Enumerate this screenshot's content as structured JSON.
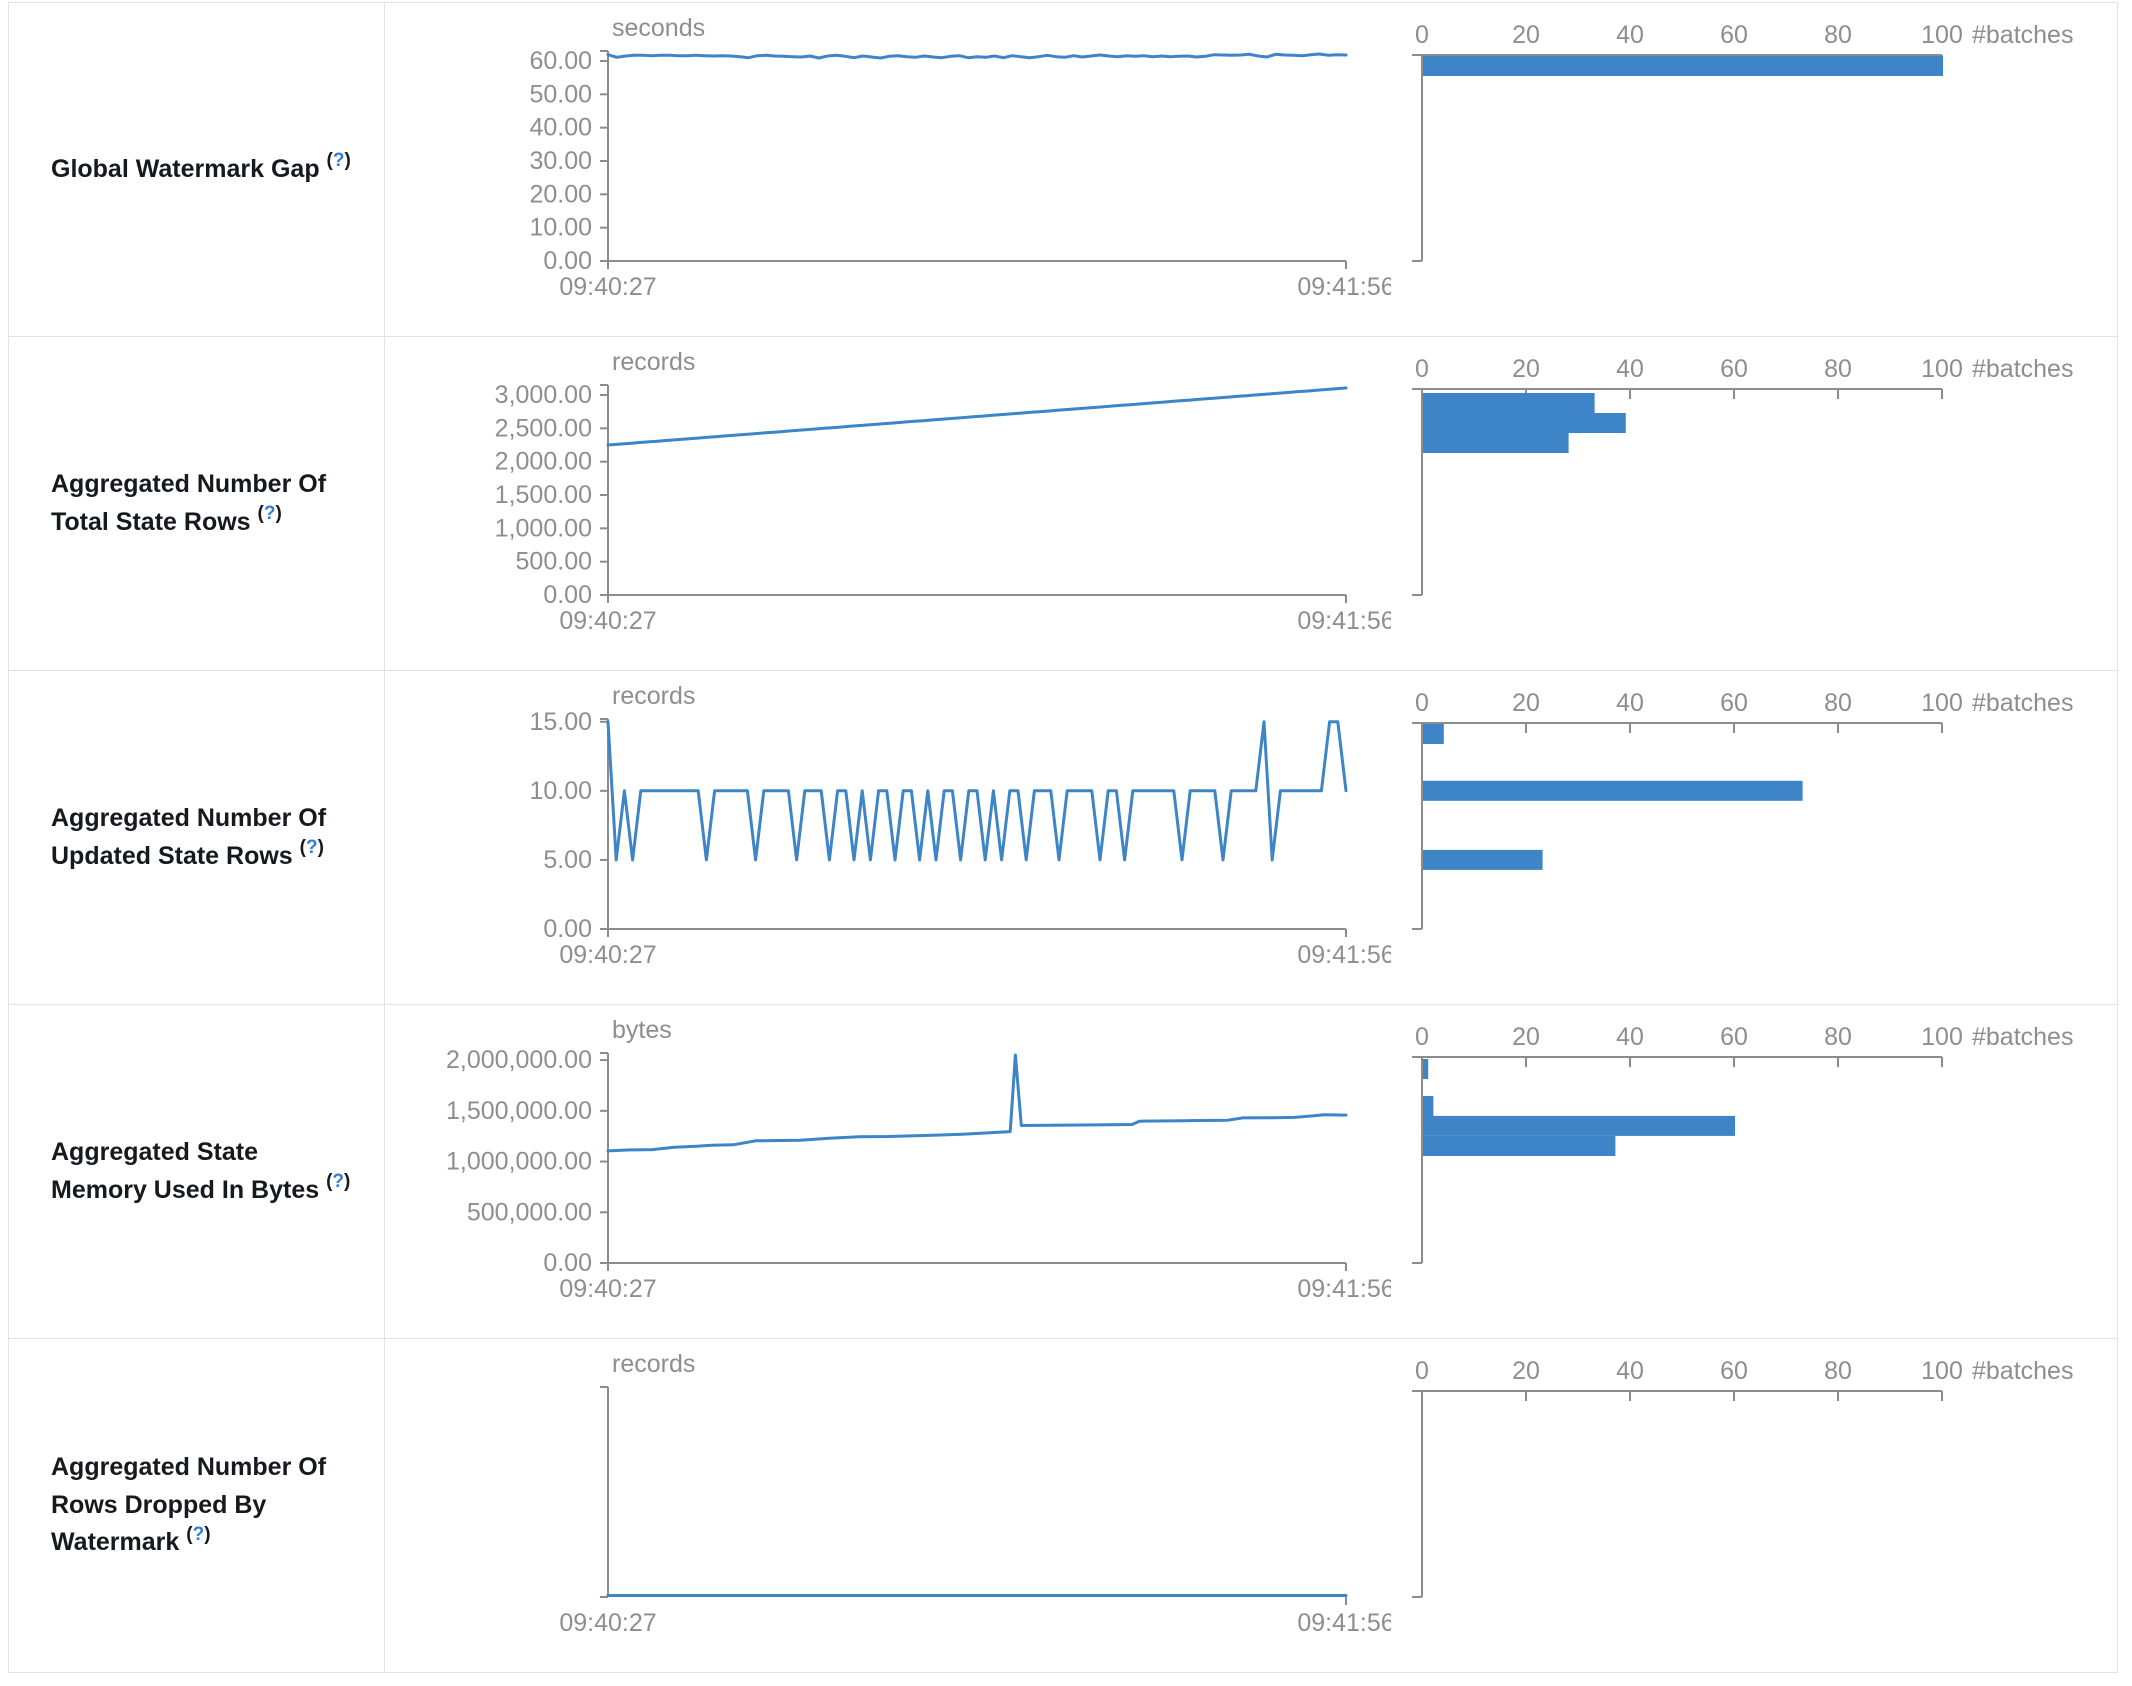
{
  "palette": {
    "series_blue": "#3d85c6",
    "axis_gray": "#8c8c8c",
    "chart_text_gray": "#8e8e8e",
    "label_text": "#16191d",
    "help_link_blue": "#2f7ed8",
    "table_border": "#dfe3e8"
  },
  "table": {
    "rows": [
      {
        "label": "Global Watermark Gap",
        "help": {
          "open": "(",
          "q": "?",
          "close": ")"
        }
      },
      {
        "label": "Aggregated Number Of Total State Rows",
        "help": {
          "open": "(",
          "q": "?",
          "close": ")"
        }
      },
      {
        "label": "Aggregated Number Of Updated State Rows",
        "help": {
          "open": "(",
          "q": "?",
          "close": ")"
        }
      },
      {
        "label": "Aggregated State Memory Used In Bytes",
        "help": {
          "open": "(",
          "q": "?",
          "close": ")"
        }
      },
      {
        "label": "Aggregated Number Of Rows Dropped By Watermark",
        "help": {
          "open": "(",
          "q": "?",
          "close": ")"
        }
      }
    ]
  },
  "chart_data": [
    {
      "metric": "global-watermark-gap",
      "type": "line",
      "unit": "seconds",
      "x_start_label": "09:40:27",
      "x_end_label": "09:41:56",
      "y_ticks": [
        0,
        10,
        20,
        30,
        40,
        50,
        60
      ],
      "y_axis_max": 63,
      "timeline": {
        "kind": "values",
        "values": [
          61.9,
          61.1,
          61.5,
          61.7,
          61.7,
          61.6,
          61.7,
          61.7,
          61.6,
          61.6,
          61.7,
          61.6,
          61.5,
          61.6,
          61.5,
          61.3,
          61.0,
          61.6,
          61.7,
          61.5,
          61.4,
          61.3,
          61.2,
          61.5,
          60.9,
          61.5,
          61.7,
          61.4,
          61.0,
          61.5,
          61.2,
          60.9,
          61.4,
          61.6,
          61.3,
          61.1,
          61.5,
          61.2,
          61.0,
          61.4,
          61.6,
          61.0,
          61.3,
          61.1,
          61.5,
          61.0,
          61.6,
          61.3,
          61.0,
          61.3,
          61.7,
          61.3,
          61.1,
          61.6,
          61.2,
          61.5,
          61.8,
          61.5,
          61.3,
          61.6,
          61.4,
          61.6,
          61.3,
          61.5,
          61.3,
          61.4,
          61.5,
          61.2,
          61.4,
          61.9,
          61.8,
          61.7,
          61.8,
          62.0,
          61.5,
          61.2,
          62.0,
          61.8,
          61.7,
          61.6,
          61.9,
          62.1,
          61.7,
          61.9,
          61.8
        ]
      },
      "histogram": {
        "axis_ticks": [
          0,
          20,
          40,
          60,
          80,
          100
        ],
        "axis_label": "#batches",
        "axis_max": 100,
        "bins": [
          {
            "value": 61,
            "count": 100
          }
        ]
      }
    },
    {
      "metric": "aggregated-number-of-total-state-rows",
      "type": "line",
      "unit": "records",
      "x_start_label": "09:40:27",
      "x_end_label": "09:41:56",
      "y_ticks": [
        0,
        500,
        1000,
        1500,
        2000,
        2500,
        3000
      ],
      "y_axis_max": 3150,
      "timeline": {
        "kind": "linear",
        "from": 2250,
        "to": 3105,
        "n": 90
      },
      "histogram": {
        "axis_ticks": [
          0,
          20,
          40,
          60,
          80,
          100
        ],
        "axis_label": "#batches",
        "axis_max": 100,
        "bins": [
          {
            "value": 2880,
            "count": 33
          },
          {
            "value": 2580,
            "count": 39
          },
          {
            "value": 2280,
            "count": 28
          }
        ]
      }
    },
    {
      "metric": "aggregated-number-of-updated-state-rows",
      "type": "line",
      "unit": "records",
      "x_start_label": "09:40:27",
      "x_end_label": "09:41:56",
      "y_ticks": [
        0,
        5,
        10,
        15
      ],
      "y_axis_max": 15.2,
      "timeline": {
        "kind": "values",
        "values": [
          15,
          5,
          10,
          5,
          10,
          10,
          10,
          10,
          10,
          10,
          10,
          10,
          5,
          10,
          10,
          10,
          10,
          10,
          5,
          10,
          10,
          10,
          10,
          5,
          10,
          10,
          10,
          5,
          10,
          10,
          5,
          10,
          5,
          10,
          10,
          5,
          10,
          10,
          5,
          10,
          5,
          10,
          10,
          5,
          10,
          10,
          5,
          10,
          5,
          10,
          10,
          5,
          10,
          10,
          10,
          5,
          10,
          10,
          10,
          10,
          5,
          10,
          10,
          5,
          10,
          10,
          10,
          10,
          10,
          10,
          5,
          10,
          10,
          10,
          10,
          5,
          10,
          10,
          10,
          10,
          15,
          5,
          10,
          10,
          10,
          10,
          10,
          10,
          15,
          15,
          10
        ]
      },
      "histogram": {
        "axis_ticks": [
          0,
          20,
          40,
          60,
          80,
          100
        ],
        "axis_label": "#batches",
        "axis_max": 100,
        "bins": [
          {
            "value": 15,
            "count": 4
          },
          {
            "value": 10,
            "count": 73
          },
          {
            "value": 5,
            "count": 23
          }
        ]
      }
    },
    {
      "metric": "aggregated-state-memory-used-in-bytes",
      "type": "line",
      "unit": "bytes",
      "x_start_label": "09:40:27",
      "x_end_label": "09:41:56",
      "y_ticks": [
        0,
        500000,
        1000000,
        1500000,
        2000000
      ],
      "y_axis_max": 2070000,
      "timeline": {
        "kind": "breakpoints",
        "points": [
          [
            0,
            1105000
          ],
          [
            0.03,
            1115000
          ],
          [
            0.06,
            1118000
          ],
          [
            0.09,
            1140000
          ],
          [
            0.12,
            1150000
          ],
          [
            0.14,
            1160000
          ],
          [
            0.17,
            1165000
          ],
          [
            0.2,
            1205000
          ],
          [
            0.26,
            1210000
          ],
          [
            0.3,
            1230000
          ],
          [
            0.34,
            1245000
          ],
          [
            0.38,
            1247000
          ],
          [
            0.44,
            1260000
          ],
          [
            0.48,
            1270000
          ],
          [
            0.52,
            1285000
          ],
          [
            0.545,
            1295000
          ],
          [
            0.552,
            2050000
          ],
          [
            0.56,
            1355000
          ],
          [
            0.6,
            1358000
          ],
          [
            0.64,
            1360000
          ],
          [
            0.68,
            1362000
          ],
          [
            0.71,
            1365000
          ],
          [
            0.72,
            1398000
          ],
          [
            0.78,
            1402000
          ],
          [
            0.8,
            1405000
          ],
          [
            0.84,
            1408000
          ],
          [
            0.86,
            1430000
          ],
          [
            0.9,
            1432000
          ],
          [
            0.93,
            1435000
          ],
          [
            0.955,
            1450000
          ],
          [
            0.97,
            1462000
          ],
          [
            1,
            1458000
          ]
        ]
      },
      "histogram": {
        "axis_ticks": [
          0,
          20,
          40,
          60,
          80,
          100
        ],
        "axis_label": "#batches",
        "axis_max": 100,
        "bins": [
          {
            "value": 1912000,
            "count": 1
          },
          {
            "value": 1548000,
            "count": 2
          },
          {
            "value": 1351000,
            "count": 60
          },
          {
            "value": 1153000,
            "count": 37
          }
        ]
      }
    },
    {
      "metric": "aggregated-number-of-rows-dropped-by-watermark",
      "type": "line",
      "unit": "records",
      "x_start_label": "09:40:27",
      "x_end_label": "09:41:56",
      "y_ticks": [],
      "y_axis_max": null,
      "timeline": {
        "kind": "flat",
        "value": 0
      },
      "histogram": {
        "axis_ticks": [
          0,
          20,
          40,
          60,
          80,
          100
        ],
        "axis_label": "#batches",
        "axis_max": 100,
        "bins": []
      }
    }
  ]
}
